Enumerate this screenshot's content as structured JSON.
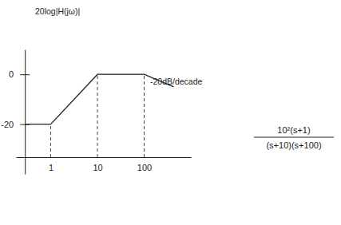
{
  "chart_data": {
    "type": "line",
    "y_label": "20log|H(jω)|",
    "x": [
      0.28,
      1,
      10,
      100,
      430
    ],
    "series": [
      {
        "color": "#222222",
        "values": [
          -20,
          -20,
          0,
          0,
          -5
        ]
      }
    ],
    "log": "x",
    "xlim": [
      0.18,
      1000
    ],
    "xticks": [
      1,
      10,
      100
    ],
    "ylim": [
      -40,
      10
    ],
    "yticks": [
      -20,
      0
    ],
    "annotations": [
      "-20dB/decade"
    ],
    "formula": {
      "numerator": "10²(s+1)",
      "denominator": "(s+10)(s+100)"
    }
  }
}
